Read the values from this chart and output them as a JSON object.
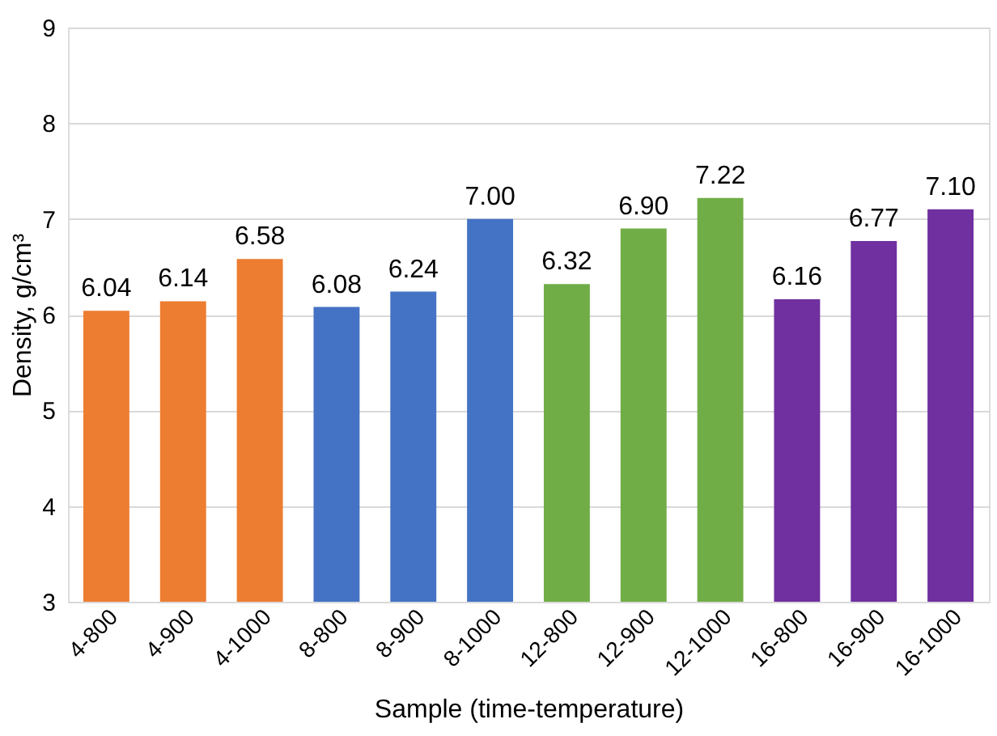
{
  "chart_data": {
    "type": "bar",
    "categories": [
      "4-800",
      "4-900",
      "4-1000",
      "8-800",
      "8-900",
      "8-1000",
      "12-800",
      "12-900",
      "12-1000",
      "16-800",
      "16-900",
      "16-1000"
    ],
    "values": [
      6.04,
      6.14,
      6.58,
      6.08,
      6.24,
      7.0,
      6.32,
      6.9,
      7.22,
      6.16,
      6.77,
      7.1
    ],
    "value_labels": [
      "6.04",
      "6.14",
      "6.58",
      "6.08",
      "6.24",
      "7.00",
      "6.32",
      "6.90",
      "7.22",
      "6.16",
      "6.77",
      "7.10"
    ],
    "colors": [
      "#ed7d31",
      "#ed7d31",
      "#ed7d31",
      "#4472c4",
      "#4472c4",
      "#4472c4",
      "#70ad47",
      "#70ad47",
      "#70ad47",
      "#7030a0",
      "#7030a0",
      "#7030a0"
    ],
    "xlabel": "Sample (time-temperature)",
    "ylabel": "Density, g/cm³",
    "ylim": [
      3,
      9
    ],
    "yticks": [
      3,
      4,
      5,
      6,
      7,
      8,
      9
    ],
    "grid": "y"
  }
}
